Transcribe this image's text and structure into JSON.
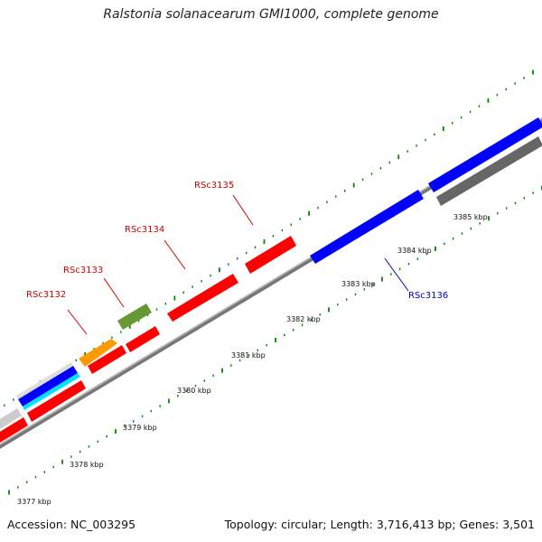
{
  "title": "Ralstonia solanacearum GMI1000, complete genome",
  "footer": {
    "accession": "Accession: NC_003295",
    "topology": "Topology: circular; Length: 3,716,413 bp; Genes: 3,501"
  },
  "scale_labels": [
    "3377 kbp",
    "3378 kbp",
    "3379 kbp",
    "3380 kbp",
    "3381 kbp",
    "3382 kbp",
    "3383 kbp",
    "3384 kbp",
    "3385 kbp"
  ],
  "gene_labels": [
    {
      "name": "RSc3132",
      "color": "#cc0000"
    },
    {
      "name": "RSc3133",
      "color": "#cc0000"
    },
    {
      "name": "RSc3134",
      "color": "#cc0000"
    },
    {
      "name": "RSc3135",
      "color": "#cc0000"
    },
    {
      "name": "RSc3136",
      "color": "#0000cc"
    }
  ],
  "colors": {
    "cds_red": "#ff0000",
    "cds_blue": "#0000ff",
    "orange": "#ff9900",
    "olive": "#669933",
    "cyan": "#00e5ff",
    "dark_gray": "#666666",
    "light_gray": "#cccccc",
    "backbone": "#999999",
    "tick_green": "#008800"
  }
}
